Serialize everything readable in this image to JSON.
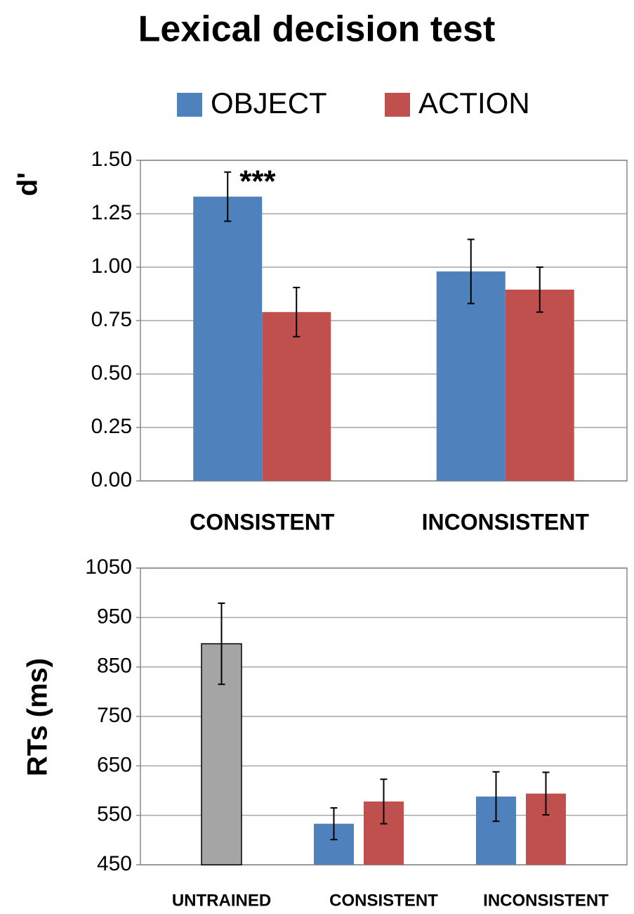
{
  "chart_data": [
    {
      "type": "bar",
      "title": "Lexical decision test",
      "y_label": "d'",
      "categories": [
        "CONSISTENT",
        "INCONSISTENT"
      ],
      "series": [
        {
          "name": "OBJECT",
          "color": "#4f81bd",
          "values": [
            1.33,
            0.98
          ],
          "errors": [
            0.115,
            0.15
          ]
        },
        {
          "name": "ACTION",
          "color": "#c0504d",
          "values": [
            0.79,
            0.895
          ],
          "errors": [
            0.115,
            0.105
          ]
        }
      ],
      "ylim": [
        0,
        1.5
      ],
      "yticks": [
        {
          "value": 0,
          "label": "0.00"
        },
        {
          "value": 0.25,
          "label": "0.25"
        },
        {
          "value": 0.5,
          "label": "0.50"
        },
        {
          "value": 0.75,
          "label": "0.75"
        },
        {
          "value": 1,
          "label": "1.00"
        },
        {
          "value": 1.25,
          "label": "1.25"
        },
        {
          "value": 1.5,
          "label": "1.50"
        }
      ],
      "grid": true,
      "annotation": "***"
    },
    {
      "type": "bar",
      "y_label": "RTs (ms)",
      "categories": [
        "UNTRAINED",
        "CONSISTENT",
        "INCONSISTENT"
      ],
      "series": [
        {
          "color": "#a5a5a5",
          "values": [
            897,
            null,
            null
          ],
          "errors": [
            82,
            null,
            null
          ]
        },
        {
          "color": "#4f81bd",
          "values": [
            null,
            533,
            588
          ],
          "errors": [
            null,
            32,
            50
          ]
        },
        {
          "color": "#c0504d",
          "values": [
            null,
            578,
            594
          ],
          "errors": [
            null,
            45,
            43
          ]
        }
      ],
      "ylim": [
        450,
        1050
      ],
      "yticks": [
        450,
        550,
        650,
        750,
        850,
        950,
        1050
      ],
      "grid": true
    }
  ]
}
